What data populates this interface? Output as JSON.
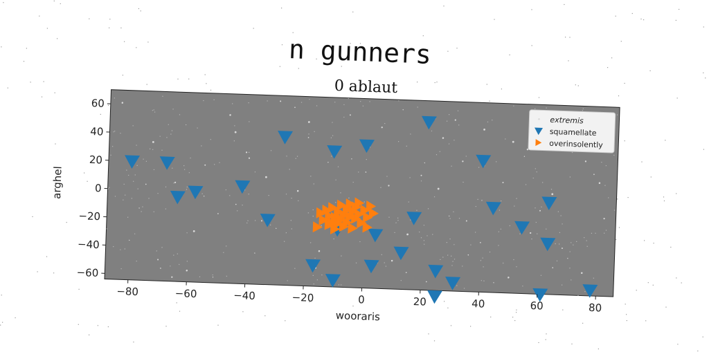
{
  "figure": {
    "suptitle": "n gunners"
  },
  "chart_data": {
    "type": "scatter",
    "title": "0 ablaut",
    "xlabel": "wooraris",
    "ylabel": "arghel",
    "xlim": [
      -88,
      86
    ],
    "ylim": [
      -64,
      70
    ],
    "xticks": [
      -80,
      -60,
      -40,
      -20,
      0,
      20,
      40,
      60,
      80
    ],
    "yticks": [
      -60,
      -40,
      -20,
      0,
      20,
      40,
      60
    ],
    "xtick_labels": [
      "−80",
      "−60",
      "−40",
      "−20",
      "0",
      "20",
      "40",
      "60",
      "80"
    ],
    "ytick_labels": [
      "−60",
      "−40",
      "−20",
      "0",
      "20",
      "40",
      "60"
    ],
    "grid": false,
    "legend_position": "top-right",
    "plot_background": "#808080",
    "series": [
      {
        "name": "extremis",
        "marker": "point",
        "color": "#d9d9d9",
        "x": [
          -84,
          -77,
          -73,
          -69,
          -65,
          -62,
          -58,
          -55,
          -51,
          -47,
          -44,
          -41,
          -37,
          -34,
          -30,
          -27,
          -23,
          -20,
          -16,
          -13,
          -9,
          -6,
          -2,
          1,
          5,
          8,
          12,
          15,
          19,
          22,
          26,
          29,
          33,
          36,
          40,
          43,
          47,
          50,
          54,
          57,
          61,
          64,
          68,
          71,
          75,
          78,
          82,
          -80,
          -70,
          -60,
          -50,
          -40,
          -30,
          -20,
          -10,
          0,
          10,
          20,
          30,
          40,
          50,
          60,
          70,
          80,
          -75,
          -65,
          -55,
          -45,
          -35,
          -25,
          -15,
          -5,
          5,
          15,
          25,
          35,
          45,
          55,
          65,
          75
        ],
        "y": [
          61,
          -13,
          34,
          -55,
          6,
          47,
          -28,
          19,
          -60,
          55,
          -8,
          29,
          -42,
          12,
          66,
          -33,
          3,
          41,
          -51,
          24,
          -17,
          58,
          -4,
          36,
          -46,
          9,
          63,
          -25,
          17,
          -58,
          44,
          -11,
          28,
          -38,
          51,
          -2,
          14,
          -53,
          33,
          -21,
          60,
          7,
          -31,
          39,
          -48,
          22,
          -9,
          -36,
          -49,
          -56,
          -15,
          25,
          -24,
          52,
          -62,
          18,
          -44,
          26,
          57,
          -29,
          43,
          -5,
          -38,
          16,
          4,
          -61,
          -3,
          43,
          -19,
          62,
          -39,
          27,
          50,
          -52,
          8,
          -14,
          -57,
          38,
          -45,
          31
        ],
        "r": [
          0.9,
          0.5,
          1.0,
          0.6,
          0.8,
          0.4,
          1.0,
          0.7,
          0.5,
          0.9,
          0.6,
          0.8,
          0.5,
          1.0,
          0.7,
          0.4,
          0.9,
          0.6,
          0.8,
          0.5,
          1.0,
          0.7,
          0.6,
          0.9,
          0.4,
          0.8,
          0.5,
          1.0,
          0.7,
          0.6,
          0.9,
          0.5,
          0.8,
          0.6,
          1.0,
          0.4,
          0.7,
          0.9,
          0.5,
          0.8,
          0.6,
          1.0,
          0.7,
          0.5,
          0.9,
          0.6,
          0.8,
          0.5,
          0.7,
          0.9,
          0.6,
          0.8,
          0.5,
          1.0,
          0.7,
          0.6,
          0.9,
          0.5,
          0.8,
          0.6,
          1.0,
          0.7,
          0.5,
          0.9,
          0.6,
          0.8,
          0.5,
          1.0,
          0.7,
          0.6,
          0.9,
          0.5,
          0.8,
          0.6,
          1.0,
          0.7,
          0.5,
          0.9,
          0.6,
          0.8
        ]
      },
      {
        "name": "squamellate",
        "marker": "triangle-down",
        "color": "#1f77b4",
        "x": [
          -80,
          -68,
          -64,
          -58,
          -42,
          -33,
          -28,
          -17,
          -10,
          -11,
          -9,
          0,
          3,
          4,
          13,
          17,
          21,
          25,
          25,
          31,
          40,
          44,
          54,
          61,
          63,
          63,
          78
        ],
        "y": [
          20,
          20,
          -4,
          0,
          5,
          -18,
          41,
          -49,
          -59,
          32,
          -23,
          37,
          -48,
          -26,
          -38,
          -13,
          55,
          -50,
          -68,
          -58,
          29,
          -4,
          -17,
          -64,
          -28,
          1,
          -60
        ]
      },
      {
        "name": "overinsolently",
        "marker": "triangle-right",
        "color": "#ff7f0e",
        "x": [
          -15,
          -14,
          -13,
          -12,
          -12,
          -11,
          -10,
          -10,
          -9,
          -9,
          -8,
          -8,
          -7,
          -7,
          -6,
          -6,
          -5,
          -5,
          -4,
          -4,
          -3,
          -3,
          -2,
          -2,
          -1,
          0,
          1,
          1,
          2,
          3,
          -16,
          -11
        ],
        "y": [
          -12,
          -17,
          -10,
          -20,
          -14,
          -8,
          -15,
          -23,
          -11,
          -19,
          -6,
          -16,
          -13,
          -21,
          -9,
          -18,
          -5,
          -14,
          -10,
          -22,
          -7,
          -15,
          -12,
          -4,
          -18,
          -9,
          -14,
          -21,
          -6,
          -11,
          -22,
          -19
        ]
      }
    ]
  }
}
